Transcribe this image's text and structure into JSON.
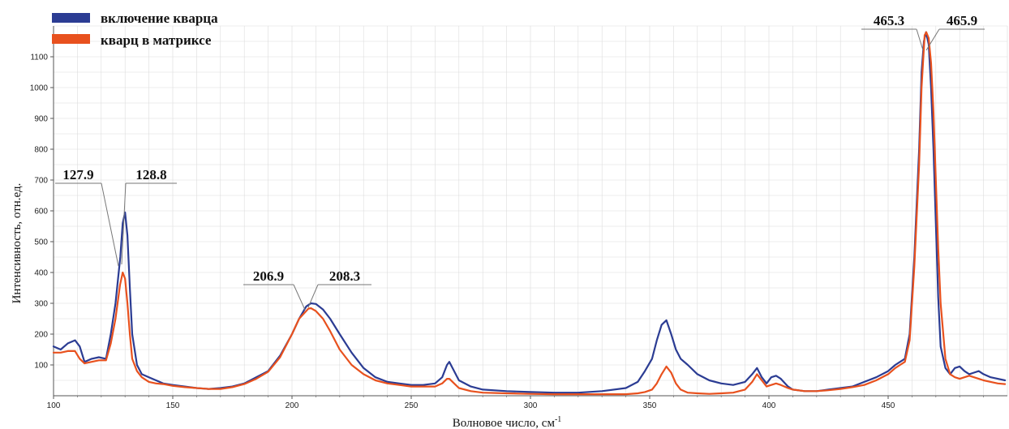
{
  "chart_data": {
    "type": "line",
    "xlabel": "Волновое число, см",
    "xlabel_sup": "-1",
    "ylabel": "Интенсивность, отн.ед.",
    "xlim": [
      100,
      500
    ],
    "ylim": [
      0,
      1200
    ],
    "xticks": [
      "100",
      "150",
      "200",
      "250",
      "300",
      "350",
      "400",
      "450"
    ],
    "yticks": [
      "100",
      "200",
      "300",
      "400",
      "500",
      "600",
      "700",
      "800",
      "900",
      "1000",
      "1100"
    ],
    "grid": true,
    "legend_position": "top-left",
    "series": [
      {
        "name": "включение кварца",
        "color": "#2b3c93",
        "x": [
          100,
          103,
          106,
          109,
          111,
          113,
          116,
          119,
          122,
          124,
          126,
          128,
          129,
          130,
          131,
          132,
          133,
          135,
          137,
          140,
          143,
          146,
          150,
          155,
          160,
          165,
          170,
          175,
          180,
          185,
          190,
          195,
          200,
          203,
          206,
          208,
          210,
          213,
          216,
          220,
          225,
          230,
          235,
          240,
          245,
          250,
          255,
          260,
          263,
          265,
          266,
          268,
          270,
          275,
          280,
          290,
          300,
          310,
          320,
          330,
          340,
          345,
          348,
          351,
          353,
          355,
          357,
          359,
          361,
          363,
          366,
          370,
          375,
          380,
          385,
          390,
          393,
          395,
          397,
          399,
          401,
          403,
          405,
          408,
          410,
          415,
          420,
          425,
          430,
          435,
          440,
          445,
          450,
          453,
          455,
          457,
          459,
          461,
          463,
          464,
          465,
          465.9,
          467,
          468,
          469,
          470,
          471,
          472,
          474,
          476,
          478,
          480,
          482,
          484,
          486,
          488,
          490,
          493,
          496,
          499
        ],
        "values": [
          160,
          150,
          170,
          180,
          160,
          110,
          120,
          125,
          120,
          200,
          300,
          450,
          560,
          595,
          520,
          350,
          200,
          100,
          70,
          60,
          50,
          40,
          35,
          30,
          25,
          22,
          25,
          30,
          40,
          60,
          80,
          130,
          200,
          250,
          290,
          300,
          298,
          280,
          250,
          200,
          140,
          90,
          60,
          45,
          40,
          35,
          35,
          40,
          60,
          100,
          110,
          80,
          50,
          30,
          20,
          15,
          12,
          10,
          10,
          15,
          25,
          45,
          80,
          120,
          180,
          230,
          245,
          200,
          150,
          120,
          100,
          70,
          50,
          40,
          35,
          45,
          70,
          90,
          60,
          40,
          60,
          65,
          55,
          30,
          20,
          15,
          15,
          20,
          25,
          30,
          45,
          60,
          80,
          100,
          110,
          120,
          200,
          450,
          800,
          1050,
          1150,
          1180,
          1140,
          1000,
          800,
          560,
          320,
          160,
          90,
          70,
          90,
          95,
          80,
          70,
          75,
          80,
          70,
          60,
          55,
          50
        ]
      },
      {
        "name": "кварц в матриксе",
        "color": "#e8511e",
        "x": [
          100,
          103,
          106,
          109,
          111,
          113,
          116,
          119,
          122,
          124,
          126,
          127.9,
          129,
          130,
          131,
          132,
          133,
          135,
          137,
          140,
          143,
          146,
          150,
          155,
          160,
          165,
          170,
          175,
          180,
          185,
          190,
          195,
          200,
          203,
          206.9,
          208,
          210,
          213,
          216,
          220,
          225,
          230,
          235,
          240,
          245,
          250,
          255,
          260,
          263,
          265,
          266,
          268,
          270,
          275,
          280,
          290,
          300,
          310,
          320,
          330,
          340,
          345,
          348,
          351,
          353,
          355,
          357,
          359,
          361,
          363,
          366,
          370,
          375,
          380,
          385,
          390,
          393,
          395,
          397,
          399,
          401,
          403,
          405,
          408,
          410,
          415,
          420,
          425,
          430,
          435,
          440,
          445,
          450,
          453,
          455,
          457,
          459,
          461,
          463,
          464,
          465.3,
          466,
          467,
          468,
          469,
          470,
          471,
          472,
          474,
          476,
          478,
          480,
          482,
          484,
          486,
          488,
          490,
          493,
          496,
          499
        ],
        "values": [
          140,
          140,
          145,
          145,
          120,
          105,
          110,
          115,
          115,
          170,
          250,
          360,
          400,
          380,
          300,
          200,
          120,
          80,
          60,
          45,
          40,
          38,
          32,
          28,
          25,
          22,
          22,
          28,
          38,
          55,
          78,
          125,
          200,
          250,
          283,
          284,
          275,
          250,
          210,
          150,
          100,
          70,
          50,
          40,
          35,
          30,
          30,
          30,
          40,
          55,
          55,
          40,
          25,
          15,
          10,
          8,
          6,
          5,
          5,
          5,
          5,
          8,
          12,
          20,
          40,
          70,
          95,
          75,
          40,
          20,
          10,
          8,
          6,
          8,
          10,
          20,
          45,
          70,
          50,
          30,
          35,
          40,
          35,
          25,
          20,
          15,
          15,
          18,
          22,
          28,
          35,
          50,
          70,
          90,
          100,
          110,
          180,
          420,
          750,
          1000,
          1170,
          1180,
          1160,
          1080,
          920,
          700,
          480,
          300,
          120,
          70,
          60,
          55,
          60,
          65,
          60,
          55,
          50,
          45,
          40,
          38
        ]
      }
    ],
    "annotations": [
      {
        "left_label": "127.9",
        "right_label": "128.8"
      },
      {
        "left_label": "206.9",
        "right_label": "208.3"
      },
      {
        "left_label": "465.3",
        "right_label": "465.9"
      }
    ]
  }
}
